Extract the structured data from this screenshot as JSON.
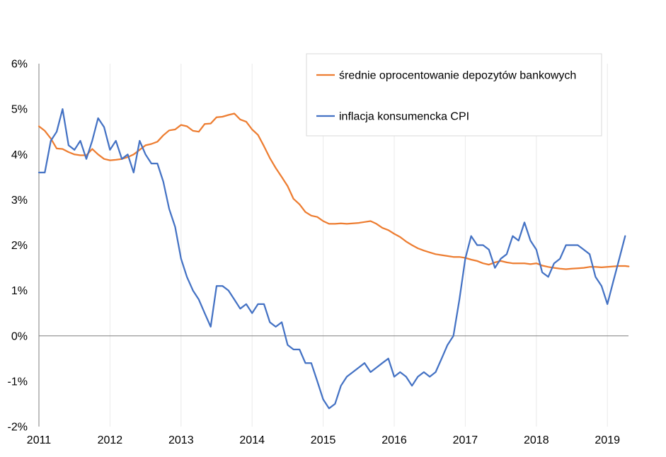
{
  "chart_data": {
    "type": "line",
    "ylim": [
      -2,
      6
    ],
    "xlim": [
      2011.0,
      2019.33
    ],
    "y_ticks": [
      6,
      5,
      4,
      3,
      2,
      1,
      0,
      -1,
      -2
    ],
    "y_tick_labels": [
      "6%",
      "5%",
      "4%",
      "3%",
      "2%",
      "1%",
      "0%",
      "-1%",
      "-2%"
    ],
    "x_ticks": [
      2011,
      2012,
      2013,
      2014,
      2015,
      2016,
      2017,
      2018,
      2019
    ],
    "x_tick_labels": [
      "2011",
      "2012",
      "2013",
      "2014",
      "2015",
      "2016",
      "2017",
      "2018",
      "2019"
    ],
    "vertical_grid": true,
    "zero_line": true,
    "legend_position": "top-right",
    "series": [
      {
        "name": "średnie oprocentowanie depozytów bankowych",
        "color": "#ED7D31",
        "points": [
          [
            2011.0,
            4.62
          ],
          [
            2011.083,
            4.52
          ],
          [
            2011.167,
            4.35
          ],
          [
            2011.25,
            4.13
          ],
          [
            2011.333,
            4.12
          ],
          [
            2011.417,
            4.05
          ],
          [
            2011.5,
            4.0
          ],
          [
            2011.583,
            3.98
          ],
          [
            2011.667,
            3.98
          ],
          [
            2011.75,
            4.12
          ],
          [
            2011.833,
            4.0
          ],
          [
            2011.917,
            3.9
          ],
          [
            2012.0,
            3.87
          ],
          [
            2012.083,
            3.88
          ],
          [
            2012.167,
            3.9
          ],
          [
            2012.25,
            3.94
          ],
          [
            2012.333,
            4.0
          ],
          [
            2012.417,
            4.1
          ],
          [
            2012.5,
            4.2
          ],
          [
            2012.583,
            4.23
          ],
          [
            2012.667,
            4.28
          ],
          [
            2012.75,
            4.42
          ],
          [
            2012.833,
            4.53
          ],
          [
            2012.917,
            4.55
          ],
          [
            2013.0,
            4.65
          ],
          [
            2013.083,
            4.62
          ],
          [
            2013.167,
            4.52
          ],
          [
            2013.25,
            4.5
          ],
          [
            2013.333,
            4.67
          ],
          [
            2013.417,
            4.68
          ],
          [
            2013.5,
            4.82
          ],
          [
            2013.583,
            4.83
          ],
          [
            2013.667,
            4.87
          ],
          [
            2013.75,
            4.9
          ],
          [
            2013.833,
            4.77
          ],
          [
            2013.917,
            4.72
          ],
          [
            2014.0,
            4.55
          ],
          [
            2014.083,
            4.43
          ],
          [
            2014.167,
            4.18
          ],
          [
            2014.25,
            3.92
          ],
          [
            2014.333,
            3.7
          ],
          [
            2014.417,
            3.5
          ],
          [
            2014.5,
            3.3
          ],
          [
            2014.583,
            3.02
          ],
          [
            2014.667,
            2.9
          ],
          [
            2014.75,
            2.73
          ],
          [
            2014.833,
            2.65
          ],
          [
            2014.917,
            2.62
          ],
          [
            2015.0,
            2.53
          ],
          [
            2015.083,
            2.47
          ],
          [
            2015.167,
            2.47
          ],
          [
            2015.25,
            2.48
          ],
          [
            2015.333,
            2.47
          ],
          [
            2015.417,
            2.48
          ],
          [
            2015.5,
            2.49
          ],
          [
            2015.583,
            2.51
          ],
          [
            2015.667,
            2.53
          ],
          [
            2015.75,
            2.47
          ],
          [
            2015.833,
            2.38
          ],
          [
            2015.917,
            2.33
          ],
          [
            2016.0,
            2.25
          ],
          [
            2016.083,
            2.18
          ],
          [
            2016.167,
            2.08
          ],
          [
            2016.25,
            2.0
          ],
          [
            2016.333,
            1.93
          ],
          [
            2016.417,
            1.88
          ],
          [
            2016.5,
            1.84
          ],
          [
            2016.583,
            1.8
          ],
          [
            2016.667,
            1.78
          ],
          [
            2016.75,
            1.76
          ],
          [
            2016.833,
            1.74
          ],
          [
            2016.917,
            1.74
          ],
          [
            2017.0,
            1.72
          ],
          [
            2017.083,
            1.68
          ],
          [
            2017.167,
            1.65
          ],
          [
            2017.25,
            1.6
          ],
          [
            2017.333,
            1.57
          ],
          [
            2017.417,
            1.62
          ],
          [
            2017.5,
            1.65
          ],
          [
            2017.583,
            1.62
          ],
          [
            2017.667,
            1.6
          ],
          [
            2017.75,
            1.6
          ],
          [
            2017.833,
            1.6
          ],
          [
            2017.917,
            1.58
          ],
          [
            2018.0,
            1.6
          ],
          [
            2018.083,
            1.55
          ],
          [
            2018.167,
            1.52
          ],
          [
            2018.25,
            1.5
          ],
          [
            2018.333,
            1.48
          ],
          [
            2018.417,
            1.47
          ],
          [
            2018.5,
            1.48
          ],
          [
            2018.583,
            1.49
          ],
          [
            2018.667,
            1.5
          ],
          [
            2018.75,
            1.52
          ],
          [
            2018.833,
            1.52
          ],
          [
            2018.917,
            1.51
          ],
          [
            2019.0,
            1.52
          ],
          [
            2019.083,
            1.53
          ],
          [
            2019.167,
            1.54
          ],
          [
            2019.25,
            1.54
          ],
          [
            2019.3,
            1.53
          ]
        ]
      },
      {
        "name": "inflacja konsumencka CPI",
        "color": "#4472C4",
        "points": [
          [
            2011.0,
            3.6
          ],
          [
            2011.083,
            3.6
          ],
          [
            2011.167,
            4.3
          ],
          [
            2011.25,
            4.5
          ],
          [
            2011.333,
            5.0
          ],
          [
            2011.417,
            4.2
          ],
          [
            2011.5,
            4.1
          ],
          [
            2011.583,
            4.3
          ],
          [
            2011.667,
            3.9
          ],
          [
            2011.75,
            4.3
          ],
          [
            2011.833,
            4.8
          ],
          [
            2011.917,
            4.6
          ],
          [
            2012.0,
            4.1
          ],
          [
            2012.083,
            4.3
          ],
          [
            2012.167,
            3.9
          ],
          [
            2012.25,
            4.0
          ],
          [
            2012.333,
            3.6
          ],
          [
            2012.417,
            4.3
          ],
          [
            2012.5,
            4.0
          ],
          [
            2012.583,
            3.8
          ],
          [
            2012.667,
            3.8
          ],
          [
            2012.75,
            3.4
          ],
          [
            2012.833,
            2.8
          ],
          [
            2012.917,
            2.4
          ],
          [
            2013.0,
            1.7
          ],
          [
            2013.083,
            1.3
          ],
          [
            2013.167,
            1.0
          ],
          [
            2013.25,
            0.8
          ],
          [
            2013.333,
            0.5
          ],
          [
            2013.417,
            0.2
          ],
          [
            2013.5,
            1.1
          ],
          [
            2013.583,
            1.1
          ],
          [
            2013.667,
            1.0
          ],
          [
            2013.75,
            0.8
          ],
          [
            2013.833,
            0.6
          ],
          [
            2013.917,
            0.7
          ],
          [
            2014.0,
            0.5
          ],
          [
            2014.083,
            0.7
          ],
          [
            2014.167,
            0.7
          ],
          [
            2014.25,
            0.3
          ],
          [
            2014.333,
            0.2
          ],
          [
            2014.417,
            0.3
          ],
          [
            2014.5,
            -0.2
          ],
          [
            2014.583,
            -0.3
          ],
          [
            2014.667,
            -0.3
          ],
          [
            2014.75,
            -0.6
          ],
          [
            2014.833,
            -0.6
          ],
          [
            2014.917,
            -1.0
          ],
          [
            2015.0,
            -1.4
          ],
          [
            2015.083,
            -1.6
          ],
          [
            2015.167,
            -1.5
          ],
          [
            2015.25,
            -1.1
          ],
          [
            2015.333,
            -0.9
          ],
          [
            2015.417,
            -0.8
          ],
          [
            2015.5,
            -0.7
          ],
          [
            2015.583,
            -0.6
          ],
          [
            2015.667,
            -0.8
          ],
          [
            2015.75,
            -0.7
          ],
          [
            2015.833,
            -0.6
          ],
          [
            2015.917,
            -0.5
          ],
          [
            2016.0,
            -0.9
          ],
          [
            2016.083,
            -0.8
          ],
          [
            2016.167,
            -0.9
          ],
          [
            2016.25,
            -1.1
          ],
          [
            2016.333,
            -0.9
          ],
          [
            2016.417,
            -0.8
          ],
          [
            2016.5,
            -0.9
          ],
          [
            2016.583,
            -0.8
          ],
          [
            2016.667,
            -0.5
          ],
          [
            2016.75,
            -0.2
          ],
          [
            2016.833,
            0.0
          ],
          [
            2016.917,
            0.8
          ],
          [
            2017.0,
            1.7
          ],
          [
            2017.083,
            2.2
          ],
          [
            2017.167,
            2.0
          ],
          [
            2017.25,
            2.0
          ],
          [
            2017.333,
            1.9
          ],
          [
            2017.417,
            1.5
          ],
          [
            2017.5,
            1.7
          ],
          [
            2017.583,
            1.8
          ],
          [
            2017.667,
            2.2
          ],
          [
            2017.75,
            2.1
          ],
          [
            2017.833,
            2.5
          ],
          [
            2017.917,
            2.1
          ],
          [
            2018.0,
            1.9
          ],
          [
            2018.083,
            1.4
          ],
          [
            2018.167,
            1.3
          ],
          [
            2018.25,
            1.6
          ],
          [
            2018.333,
            1.7
          ],
          [
            2018.417,
            2.0
          ],
          [
            2018.5,
            2.0
          ],
          [
            2018.583,
            2.0
          ],
          [
            2018.667,
            1.9
          ],
          [
            2018.75,
            1.8
          ],
          [
            2018.833,
            1.3
          ],
          [
            2018.917,
            1.1
          ],
          [
            2019.0,
            0.7
          ],
          [
            2019.083,
            1.2
          ],
          [
            2019.167,
            1.7
          ],
          [
            2019.25,
            2.2
          ]
        ]
      }
    ]
  }
}
